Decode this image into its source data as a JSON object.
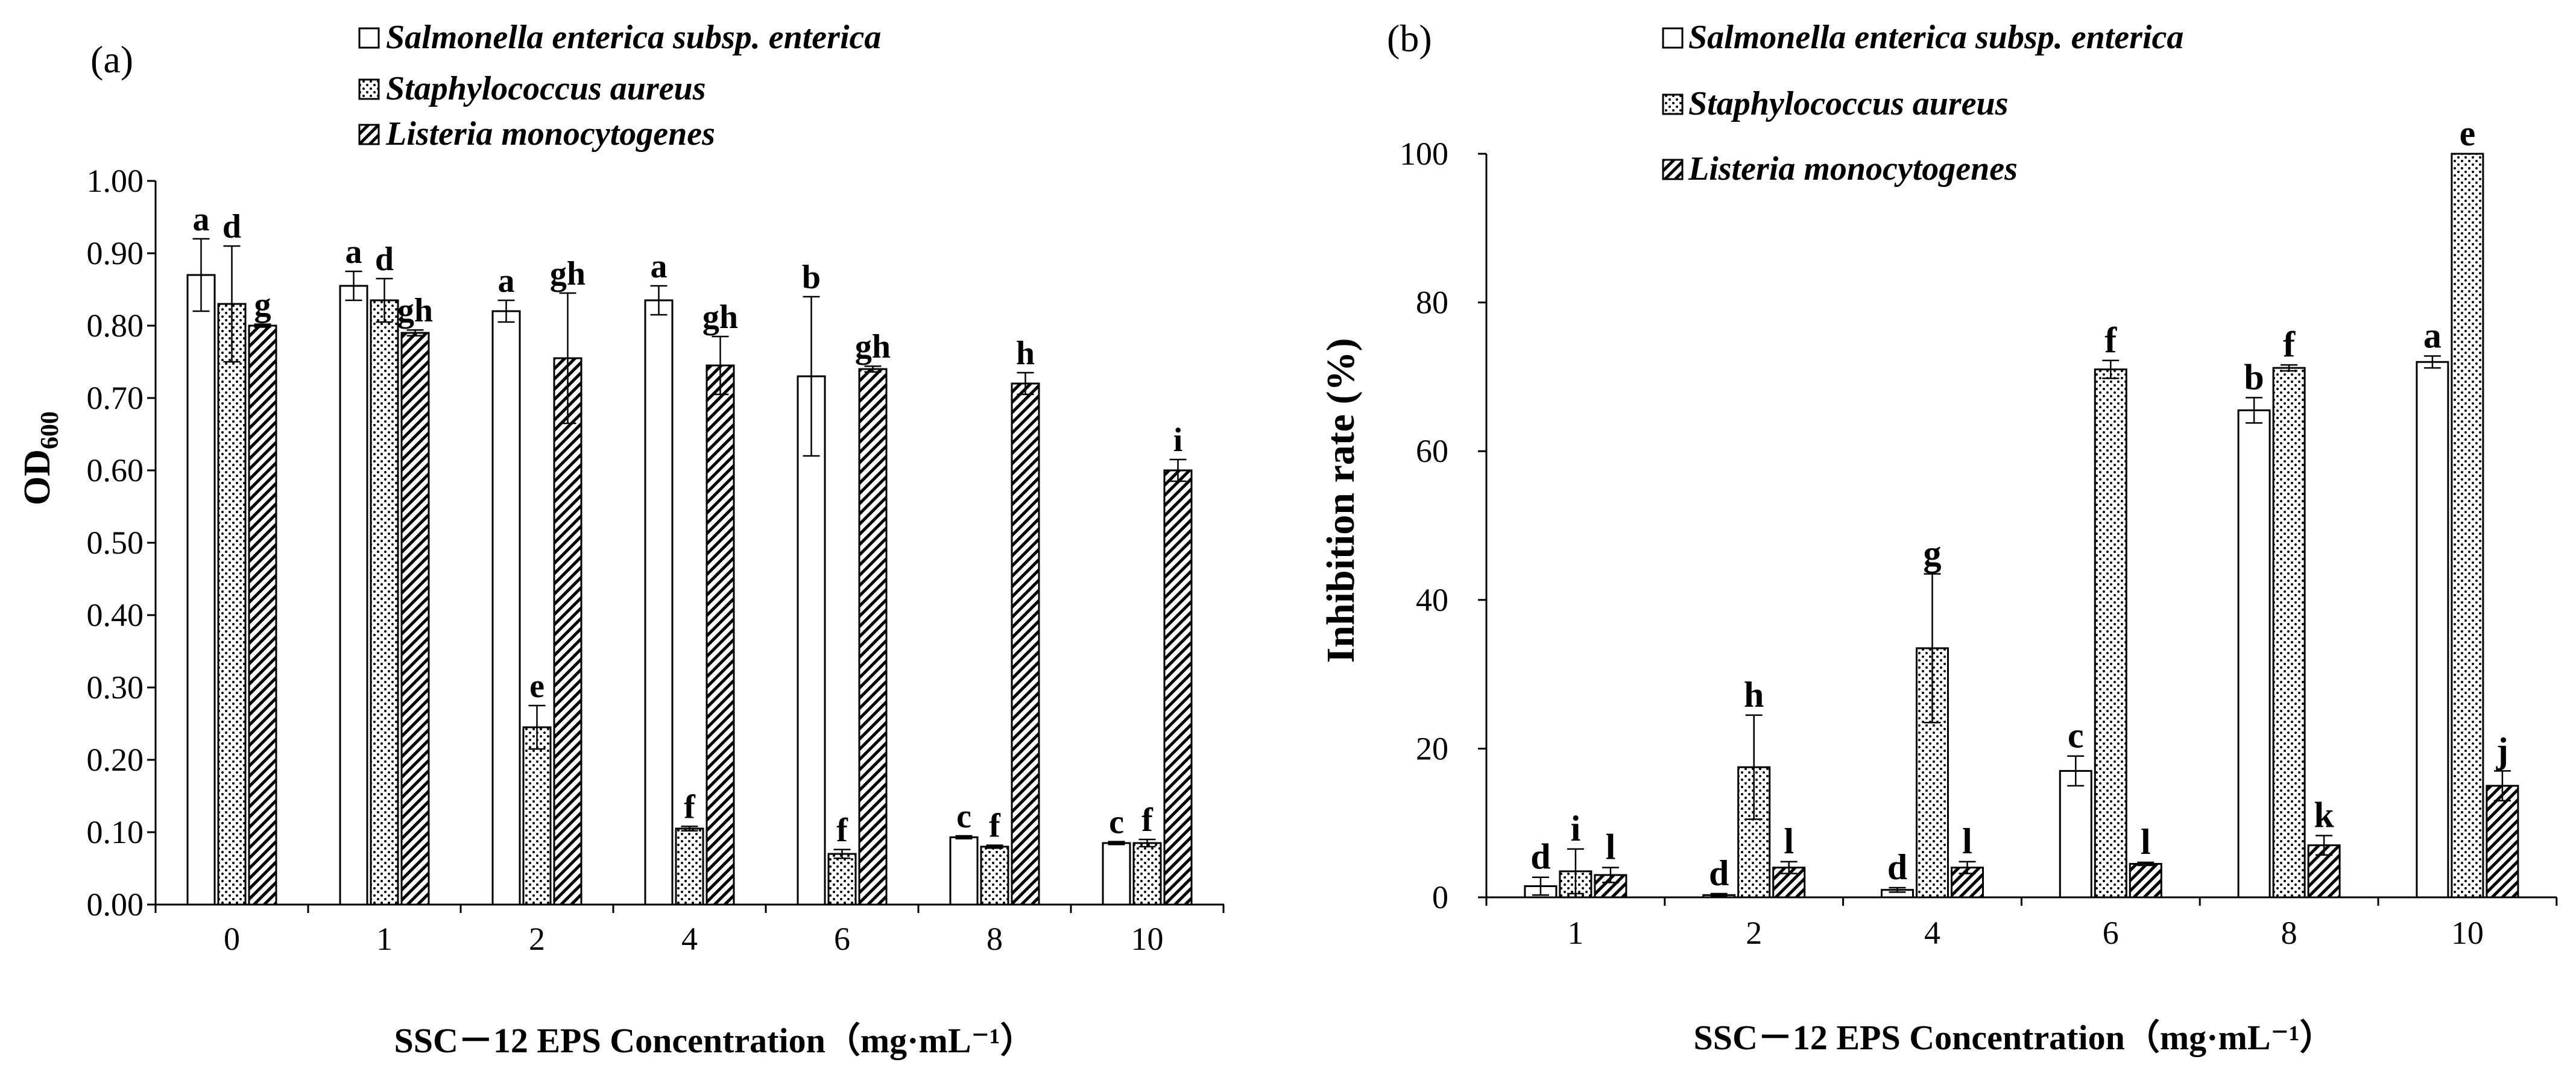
{
  "legend": [
    {
      "name": "Salmonella enterica subsp. enterica",
      "pattern": "open"
    },
    {
      "name": "Staphylococcus aureus",
      "pattern": "dots"
    },
    {
      "name": "Listeria monocytogenes",
      "pattern": "hatch"
    }
  ],
  "chart_data": [
    {
      "panel": "(a)",
      "type": "bar",
      "ylabel": "OD",
      "ylabel_sub": "600",
      "xlabel": "SSC－12 EPS Concentration（mg·mL⁻¹）",
      "categories": [
        "0",
        "1",
        "2",
        "4",
        "6",
        "8",
        "10"
      ],
      "ylim": [
        0,
        1.0
      ],
      "yticks": [
        "0.00",
        "0.10",
        "0.20",
        "0.30",
        "0.40",
        "0.50",
        "0.60",
        "0.70",
        "0.80",
        "0.90",
        "1.00"
      ],
      "series": [
        {
          "name": "Salmonella enterica subsp. enterica",
          "values": [
            0.87,
            0.855,
            0.82,
            0.835,
            0.73,
            0.093,
            0.085
          ],
          "errors": [
            0.05,
            0.02,
            0.015,
            0.02,
            0.11,
            0.002,
            0.002
          ],
          "labels": [
            "a",
            "a",
            "a",
            "a",
            "b",
            "c",
            "c"
          ]
        },
        {
          "name": "Staphylococcus aureus",
          "values": [
            0.83,
            0.835,
            0.245,
            0.105,
            0.07,
            0.08,
            0.085
          ],
          "errors": [
            0.08,
            0.03,
            0.03,
            0.003,
            0.006,
            0.002,
            0.005
          ],
          "labels": [
            "d",
            "d",
            "e",
            "f",
            "f",
            "f",
            "f"
          ]
        },
        {
          "name": "Listeria monocytogenes",
          "values": [
            0.8,
            0.79,
            0.755,
            0.745,
            0.74,
            0.72,
            0.6
          ],
          "errors": [
            0.002,
            0.004,
            0.09,
            0.04,
            0.004,
            0.015,
            0.015
          ],
          "labels": [
            "g",
            "gh",
            "gh",
            "gh",
            "gh",
            "h",
            "i"
          ]
        }
      ]
    },
    {
      "panel": "(b)",
      "type": "bar",
      "ylabel": "Inhibition rate (%)",
      "xlabel": "SSC－12 EPS Concentration（mg·mL⁻¹）",
      "categories": [
        "1",
        "2",
        "4",
        "6",
        "8",
        "10"
      ],
      "ylim": [
        0,
        100
      ],
      "yticks": [
        "0",
        "20",
        "40",
        "60",
        "80",
        "100"
      ],
      "series": [
        {
          "name": "Salmonella enterica subsp. enterica",
          "values": [
            1.5,
            0.3,
            1.0,
            17,
            65.5,
            72
          ],
          "errors": [
            1.2,
            0.2,
            0.3,
            2,
            1.7,
            0.8
          ],
          "labels": [
            "d",
            "d",
            "d",
            "c",
            "b",
            "a"
          ]
        },
        {
          "name": "Staphylococcus aureus",
          "values": [
            3.5,
            17.5,
            33.5,
            71,
            71.2,
            100
          ],
          "errors": [
            3,
            7,
            10,
            1.2,
            0.4,
            0
          ],
          "labels": [
            "i",
            "h",
            "g",
            "f",
            "f",
            "e"
          ]
        },
        {
          "name": "Listeria monocytogenes",
          "values": [
            3,
            4,
            4,
            4.5,
            7,
            15
          ],
          "errors": [
            1,
            0.8,
            0.8,
            0.2,
            1.3,
            2
          ],
          "labels": [
            "l",
            "l",
            "l",
            "l",
            "k",
            "j"
          ]
        }
      ]
    }
  ]
}
